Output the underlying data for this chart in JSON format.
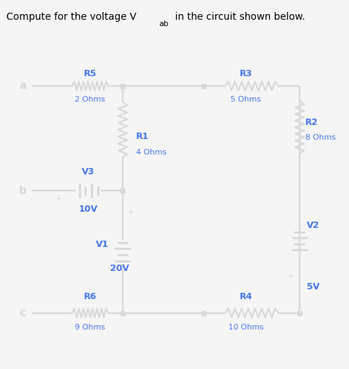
{
  "bg_color": "#000000",
  "outer_bg": "#f5f5f5",
  "wire_color": "#d8d8d8",
  "blue_color": "#4477ee",
  "title": "Compute for the voltage V",
  "title_sub": "ab",
  "title_rest": " in the circuit shown below.",
  "node_color": "#d8d8d8",
  "plus_color": "#d8d8d8",
  "components": {
    "R5": "2 Ohms",
    "R3": "5 Ohms",
    "R1": "4 Ohms",
    "R2": "8 Ohms",
    "R6": "9 Ohms",
    "R4": "10 Ohms",
    "V1": "20V",
    "V2": "5V",
    "V3": "10V"
  }
}
